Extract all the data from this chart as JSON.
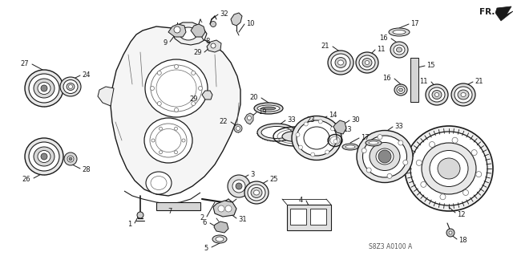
{
  "bg_color": "#ffffff",
  "footer_text": "S8Z3 A0100 A",
  "fr_label": "FR.",
  "fig_width": 6.4,
  "fig_height": 3.19,
  "dark": "#1a1a1a",
  "gray": "#666666",
  "lgray": "#cccccc",
  "mgray": "#999999"
}
